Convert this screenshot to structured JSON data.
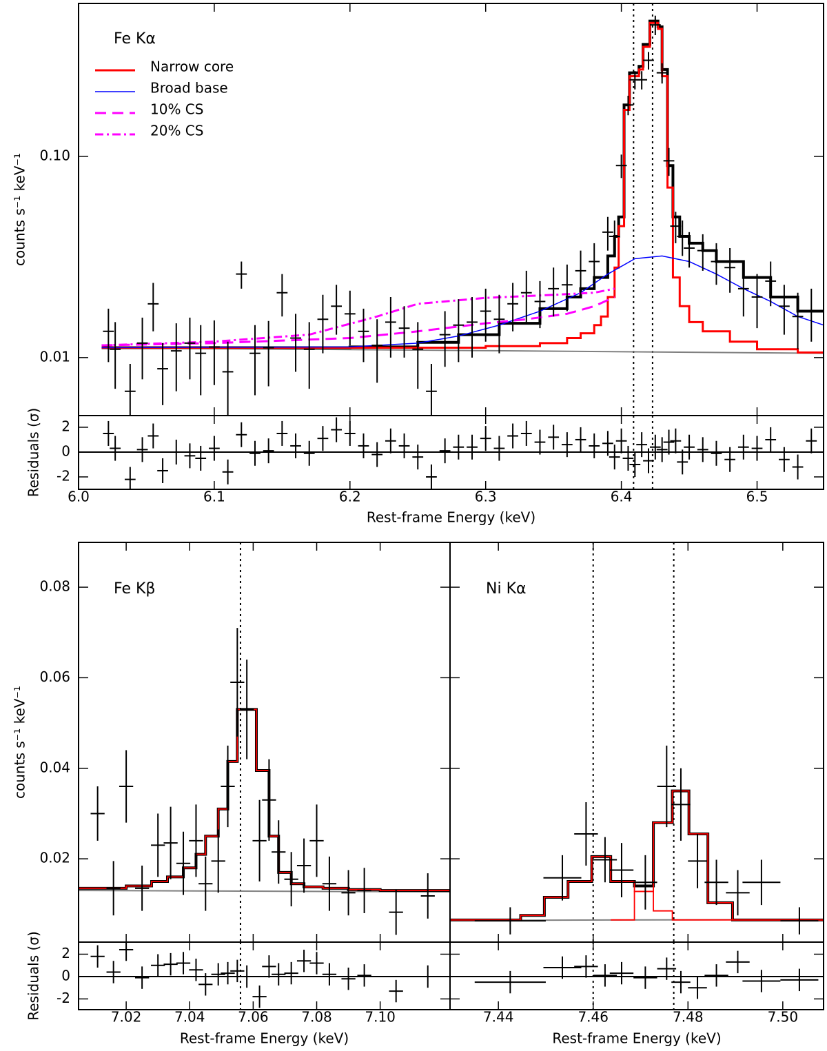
{
  "chart_data": [
    {
      "type": "errorbar",
      "annotation": "Fe Kα",
      "xlabel": "Rest-frame Energy (keV)",
      "ylabel": "counts s⁻¹ keV⁻¹",
      "residual_ylabel": "Residuals (σ)",
      "xlim": [
        6.0,
        6.549
      ],
      "xticks": [
        {
          "value": 6.0,
          "label": "6.0"
        },
        6.1,
        6.2,
        6.3,
        6.4,
        6.5
      ],
      "ylim": [
        0.00515,
        0.575
      ],
      "yscale": "log",
      "yticks": [
        0.01,
        {
          "value": 0.1,
          "label": "0.10"
        }
      ],
      "show_ytick_labels": true,
      "residual_ylim": [
        -3.0,
        2.94
      ],
      "residual_yticks": [
        -2,
        0,
        2
      ],
      "residual_err": 1,
      "legend": "upper left",
      "vlines": [
        6.409,
        6.423
      ],
      "x": [
        6.022,
        6.027,
        6.038,
        6.047,
        6.055,
        6.062,
        6.072,
        6.082,
        6.09,
        6.1,
        6.11,
        6.12,
        6.13,
        6.14,
        6.15,
        6.16,
        6.17,
        6.18,
        6.19,
        6.2,
        6.21,
        6.22,
        6.23,
        6.24,
        6.25,
        6.26,
        6.27,
        6.28,
        6.29,
        6.3,
        6.31,
        6.32,
        6.33,
        6.34,
        6.35,
        6.36,
        6.37,
        6.38,
        6.39,
        6.395,
        6.4,
        6.405,
        6.41,
        6.415,
        6.42,
        6.425,
        6.43,
        6.435,
        6.44,
        6.445,
        6.45,
        6.46,
        6.47,
        6.48,
        6.49,
        6.5,
        6.51,
        6.52,
        6.53,
        6.54
      ],
      "y": [
        0.0135,
        0.011,
        0.0068,
        0.0118,
        0.0185,
        0.0088,
        0.0108,
        0.0118,
        0.0105,
        0.0113,
        0.0085,
        0.026,
        0.0105,
        0.0112,
        0.021,
        0.0125,
        0.011,
        0.0155,
        0.018,
        0.0165,
        0.0135,
        0.0115,
        0.015,
        0.014,
        0.011,
        0.0068,
        0.013,
        0.0145,
        0.015,
        0.017,
        0.0155,
        0.0185,
        0.021,
        0.019,
        0.022,
        0.023,
        0.027,
        0.03,
        0.042,
        0.04,
        0.09,
        0.18,
        0.24,
        0.24,
        0.3,
        0.45,
        0.26,
        0.095,
        0.045,
        0.04,
        0.035,
        0.034,
        0.03,
        0.028,
        0.022,
        0.02,
        0.024,
        0.018,
        0.016,
        0.017
      ],
      "yerr": [
        0.004,
        0.004,
        0.0025,
        0.004,
        0.005,
        0.003,
        0.004,
        0.004,
        0.004,
        0.004,
        0.0035,
        0.004,
        0.004,
        0.004,
        0.005,
        0.004,
        0.004,
        0.005,
        0.005,
        0.005,
        0.004,
        0.004,
        0.005,
        0.004,
        0.004,
        0.0025,
        0.004,
        0.005,
        0.005,
        0.005,
        0.005,
        0.005,
        0.006,
        0.005,
        0.006,
        0.006,
        0.007,
        0.007,
        0.008,
        0.008,
        0.012,
        0.02,
        0.025,
        0.025,
        0.03,
        0.05,
        0.03,
        0.015,
        0.008,
        0.008,
        0.007,
        0.007,
        0.007,
        0.007,
        0.006,
        0.006,
        0.006,
        0.005,
        0.005,
        0.005
      ],
      "xerr": 0.004,
      "residuals": [
        1.5,
        0.3,
        -2.2,
        0.2,
        1.3,
        -1.5,
        0,
        -0.3,
        -0.5,
        0.3,
        -1.6,
        1.4,
        -0.1,
        0.1,
        1.5,
        0.5,
        -0.1,
        1.1,
        1.8,
        1.5,
        0.5,
        -0.2,
        0.9,
        0.5,
        -0.4,
        -2.0,
        0.1,
        0.4,
        0.4,
        1.1,
        0.3,
        1.3,
        1.5,
        0.8,
        1.2,
        0.6,
        1.0,
        0.5,
        0.7,
        -0.4,
        0.9,
        -0.5,
        -1.0,
        0.6,
        -0.7,
        0.4,
        0.2,
        0.8,
        0.9,
        -0.8,
        0.4,
        0.2,
        -0.1,
        -0.6,
        0.4,
        0.3,
        1.0,
        -0.6,
        -1.2,
        0.9
      ],
      "models": [
        {
          "color": "#808080",
          "width": 2,
          "x": [
            6.017,
            6.549
          ],
          "values": [
            0.0112,
            0.0105
          ]
        },
        {
          "color": "#000000",
          "width": 4,
          "drawstyle": "steps-post",
          "x": [
            6.017,
            6.2,
            6.25,
            6.28,
            6.31,
            6.34,
            6.36,
            6.37,
            6.38,
            6.39,
            6.395,
            6.398,
            6.402,
            6.406,
            6.413,
            6.416,
            6.421,
            6.427,
            6.43,
            6.434,
            6.438,
            6.443,
            6.45,
            6.46,
            6.47,
            6.49,
            6.51,
            6.53
          ],
          "values": [
            0.0112,
            0.0113,
            0.0119,
            0.013,
            0.0148,
            0.0175,
            0.02,
            0.022,
            0.025,
            0.032,
            0.04,
            0.05,
            0.18,
            0.26,
            0.28,
            0.36,
            0.47,
            0.44,
            0.27,
            0.09,
            0.05,
            0.04,
            0.037,
            0.034,
            0.03,
            0.025,
            0.02,
            0.017
          ]
        },
        {
          "name": "Narrow core",
          "color": "#ff0000",
          "width": 3,
          "drawstyle": "steps-post",
          "x": [
            6.017,
            6.2,
            6.3,
            6.34,
            6.36,
            6.37,
            6.38,
            6.385,
            6.39,
            6.395,
            6.398,
            6.402,
            6.406,
            6.413,
            6.416,
            6.421,
            6.427,
            6.43,
            6.434,
            6.438,
            6.443,
            6.45,
            6.46,
            6.48,
            6.5,
            6.53
          ],
          "values": [
            0.0112,
            0.0112,
            0.0114,
            0.0118,
            0.0125,
            0.0132,
            0.0145,
            0.016,
            0.02,
            0.028,
            0.045,
            0.17,
            0.25,
            0.27,
            0.35,
            0.46,
            0.43,
            0.25,
            0.07,
            0.025,
            0.018,
            0.015,
            0.0135,
            0.012,
            0.011,
            0.0106
          ]
        },
        {
          "name": "Broad base",
          "color": "#0000ff",
          "width": 1.5,
          "x": [
            6.017,
            6.2,
            6.25,
            6.28,
            6.31,
            6.34,
            6.37,
            6.39,
            6.41,
            6.43,
            6.45,
            6.47,
            6.49,
            6.51,
            6.53,
            6.549
          ],
          "values": [
            0.0112,
            0.0113,
            0.0118,
            0.0128,
            0.0145,
            0.017,
            0.021,
            0.026,
            0.031,
            0.032,
            0.03,
            0.026,
            0.022,
            0.019,
            0.016,
            0.0145
          ]
        },
        {
          "name": "10% CS",
          "color": "#ff00ff",
          "width": 3,
          "linestyle": "--",
          "x": [
            6.017,
            6.1,
            6.2,
            6.25,
            6.3,
            6.33,
            6.36,
            6.38,
            6.395
          ],
          "values": [
            0.0115,
            0.0118,
            0.0125,
            0.0135,
            0.0148,
            0.0155,
            0.0165,
            0.018,
            0.02
          ]
        },
        {
          "name": "20% CS",
          "color": "#ff00ff",
          "width": 3,
          "linestyle": "-.",
          "x": [
            6.017,
            6.1,
            6.17,
            6.22,
            6.25,
            6.3,
            6.35,
            6.38,
            6.395
          ],
          "values": [
            0.0115,
            0.012,
            0.013,
            0.016,
            0.0185,
            0.0198,
            0.0205,
            0.021,
            0.022
          ]
        }
      ]
    },
    {
      "type": "errorbar",
      "annotation": "Fe Kβ",
      "xlabel": "Rest-frame Energy (keV)",
      "ylabel": "counts s⁻¹ keV⁻¹",
      "residual_ylabel": "Residuals (σ)",
      "xlim": [
        7.005,
        7.122
      ],
      "xticks": [
        7.02,
        7.04,
        7.06,
        7.08,
        {
          "value": 7.1,
          "label": "7.10"
        }
      ],
      "ylim": [
        0.0016,
        0.0899
      ],
      "yscale": "linear",
      "yticks": [
        0.02,
        0.04,
        0.06,
        0.08
      ],
      "show_ytick_labels": true,
      "residual_ylim": [
        -2.96,
        3.08
      ],
      "residual_yticks": [
        -2,
        0,
        2
      ],
      "residual_err": 1,
      "vlines": [
        7.056
      ],
      "x": [
        7.011,
        7.016,
        7.02,
        7.025,
        7.03,
        7.034,
        7.038,
        7.042,
        7.045,
        7.049,
        7.052,
        7.055,
        7.058,
        7.062,
        7.065,
        7.068,
        7.072,
        7.076,
        7.08,
        7.084,
        7.09,
        7.095,
        7.105,
        7.115
      ],
      "y": [
        0.03,
        0.0135,
        0.036,
        0.0135,
        0.023,
        0.0235,
        0.019,
        0.024,
        0.0145,
        0.0195,
        0.036,
        0.059,
        0.053,
        0.024,
        0.033,
        0.0215,
        0.0155,
        0.0185,
        0.024,
        0.0145,
        0.0125,
        0.013,
        0.0082,
        0.0118
      ],
      "yerr": [
        0.006,
        0.006,
        0.008,
        0.005,
        0.007,
        0.008,
        0.007,
        0.008,
        0.006,
        0.007,
        0.009,
        0.012,
        0.011,
        0.009,
        0.009,
        0.007,
        0.006,
        0.006,
        0.008,
        0.006,
        0.005,
        0.005,
        0.005,
        0.005
      ],
      "xerr": 0.0022,
      "residuals": [
        1.8,
        0.4,
        2.4,
        -0.1,
        1.0,
        1.1,
        1.2,
        0.6,
        -0.7,
        0.2,
        0.3,
        0.5,
        0,
        -1.8,
        0.9,
        0.2,
        0.3,
        1.4,
        1.2,
        0.2,
        -0.2,
        0.1,
        -1.3,
        0
      ],
      "models": [
        {
          "color": "#808080",
          "width": 2,
          "x": [
            7.005,
            7.122
          ],
          "values": [
            0.013,
            0.0127
          ]
        },
        {
          "color": "#000000",
          "width": 4,
          "drawstyle": "steps-post",
          "x": [
            7.005,
            7.02,
            7.028,
            7.033,
            7.038,
            7.042,
            7.045,
            7.049,
            7.052,
            7.055,
            7.061,
            7.065,
            7.068,
            7.072,
            7.076,
            7.082,
            7.09,
            7.1
          ],
          "values": [
            0.0135,
            0.014,
            0.015,
            0.016,
            0.018,
            0.021,
            0.025,
            0.031,
            0.0415,
            0.053,
            0.0395,
            0.025,
            0.017,
            0.0145,
            0.0138,
            0.0135,
            0.0132,
            0.013
          ]
        },
        {
          "color": "#ff0000",
          "width": 1.8,
          "drawstyle": "steps-post",
          "x": [
            7.005,
            7.02,
            7.028,
            7.033,
            7.038,
            7.042,
            7.045,
            7.049,
            7.052,
            7.055,
            7.061,
            7.065,
            7.068,
            7.072,
            7.076,
            7.082,
            7.09,
            7.1
          ],
          "values": [
            0.0135,
            0.014,
            0.015,
            0.016,
            0.018,
            0.021,
            0.025,
            0.031,
            0.0415,
            0.053,
            0.0395,
            0.025,
            0.017,
            0.0145,
            0.0138,
            0.0135,
            0.0132,
            0.013
          ]
        }
      ]
    },
    {
      "type": "errorbar",
      "annotation": "Ni Kα",
      "xlabel": "Rest-frame Energy (keV)",
      "xlim": [
        7.4298,
        7.5086
      ],
      "xticks": [
        7.44,
        7.46,
        7.48,
        {
          "value": 7.5,
          "label": "7.50"
        }
      ],
      "ylim": [
        0.0016,
        0.0899
      ],
      "yscale": "linear",
      "yticks": [
        0.02,
        0.04,
        0.06,
        0.08
      ],
      "show_ytick_labels": false,
      "residual_ylim": [
        -2.96,
        3.08
      ],
      "residual_yticks": [
        -2,
        0,
        2
      ],
      "residual_err": 1,
      "vlines": [
        7.46,
        7.477
      ],
      "x": [
        7.4425,
        7.4535,
        7.4585,
        7.4625,
        7.466,
        7.471,
        7.4755,
        7.4785,
        7.482,
        7.486,
        7.4905,
        7.4955,
        7.5035
      ],
      "y": [
        0.0063,
        0.0158,
        0.0255,
        0.0198,
        0.0175,
        0.0148,
        0.036,
        0.032,
        0.0195,
        0.0148,
        0.0125,
        0.0148,
        0.0063
      ],
      "yerr": [
        0.003,
        0.005,
        0.007,
        0.005,
        0.006,
        0.006,
        0.009,
        0.008,
        0.006,
        0.005,
        0.005,
        0.005,
        0.003
      ],
      "xerr": [
        0.0075,
        0.004,
        0.0025,
        0.0025,
        0.0025,
        0.0025,
        0.002,
        0.002,
        0.002,
        0.0025,
        0.0025,
        0.004,
        0.004
      ],
      "residuals": [
        -0.5,
        0.8,
        0.9,
        0.1,
        0.3,
        -0.1,
        0.7,
        -0.5,
        -1.0,
        0.1,
        1.3,
        -0.4,
        -0.3
      ],
      "models": [
        {
          "color": "#808080",
          "width": 2,
          "x": [
            7.4298,
            7.5086
          ],
          "values": [
            0.0064,
            0.0066
          ]
        },
        {
          "color": "#000000",
          "width": 4,
          "drawstyle": "steps-post",
          "x": [
            7.4298,
            7.4447,
            7.4497,
            7.4547,
            7.4597,
            7.4637,
            7.4687,
            7.4727,
            7.4767,
            7.4802,
            7.4842,
            7.4894
          ],
          "values": [
            0.0065,
            0.0075,
            0.0115,
            0.015,
            0.0205,
            0.015,
            0.014,
            0.028,
            0.035,
            0.0255,
            0.0103,
            0.0065
          ]
        },
        {
          "color": "#ff0000",
          "width": 1.8,
          "drawstyle": "steps-post",
          "x": [
            7.4298,
            7.4447,
            7.4497,
            7.4547,
            7.4597,
            7.4637,
            7.4687,
            7.4727,
            7.4767,
            7.4802,
            7.4842,
            7.4894
          ],
          "values": [
            0.0065,
            0.0075,
            0.0115,
            0.015,
            0.0205,
            0.015,
            0.0128,
            0.028,
            0.035,
            0.0255,
            0.0103,
            0.0065
          ]
        },
        {
          "color": "#ff0000",
          "width": 1.8,
          "drawstyle": "steps-post",
          "x": [
            7.4637,
            7.4687,
            7.4727,
            7.4767,
            7.4802
          ],
          "values": [
            0.0065,
            0.0128,
            0.0085,
            0.0065,
            0.0065
          ]
        }
      ]
    }
  ]
}
